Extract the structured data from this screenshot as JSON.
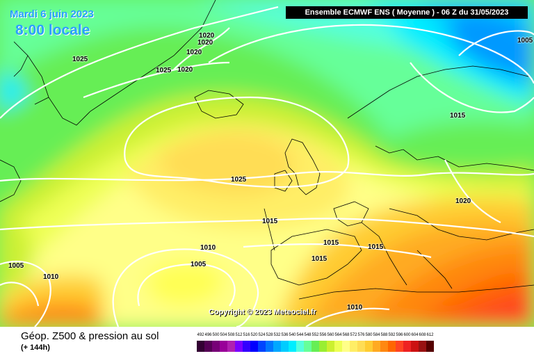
{
  "header": {
    "date": "Mardi 6 juin 2023",
    "local_time": "8:00 locale",
    "model_run": "Ensemble ECMWF ENS  ( Moyenne )  -  06 Z du 31/05/2023"
  },
  "copyright": "Copyright © 2023 Meteociel.fr",
  "footer": {
    "title": "Géop. Z500 & pression au sol",
    "lead": "(+ 144h)"
  },
  "isobar_labels": [
    {
      "text": "1020"
    },
    {
      "text": "1020"
    },
    {
      "text": "1020"
    },
    {
      "text": "1025"
    },
    {
      "text": "1025"
    },
    {
      "text": "1020"
    },
    {
      "text": "1005"
    },
    {
      "text": "1015"
    },
    {
      "text": "1025"
    },
    {
      "text": "1015"
    },
    {
      "text": "1020"
    },
    {
      "text": "1015"
    },
    {
      "text": "1015"
    },
    {
      "text": "1015"
    },
    {
      "text": "1010"
    },
    {
      "text": "1005"
    },
    {
      "text": "1005"
    },
    {
      "text": "1010"
    },
    {
      "text": "1010"
    }
  ],
  "color_scale": {
    "labels": [
      "492",
      "496",
      "500",
      "504",
      "508",
      "512",
      "516",
      "520",
      "524",
      "528",
      "532",
      "536",
      "540",
      "544",
      "548",
      "552",
      "556",
      "560",
      "564",
      "568",
      "572",
      "576",
      "580",
      "584",
      "588",
      "592",
      "596",
      "600",
      "604",
      "608",
      "612"
    ],
    "colors": [
      "#330033",
      "#550055",
      "#770077",
      "#990099",
      "#b020b0",
      "#7a00ff",
      "#3300ff",
      "#0000ff",
      "#0044ff",
      "#0077ff",
      "#00a8ff",
      "#00ccff",
      "#00eeff",
      "#55ffdd",
      "#66ff99",
      "#66ee55",
      "#99ee33",
      "#ccf030",
      "#eeff55",
      "#ffff88",
      "#ffee66",
      "#ffdd55",
      "#ffcc33",
      "#ffaa22",
      "#ff8811",
      "#ff6600",
      "#ff4422",
      "#ee2222",
      "#cc1111",
      "#991111",
      "#550000"
    ]
  }
}
